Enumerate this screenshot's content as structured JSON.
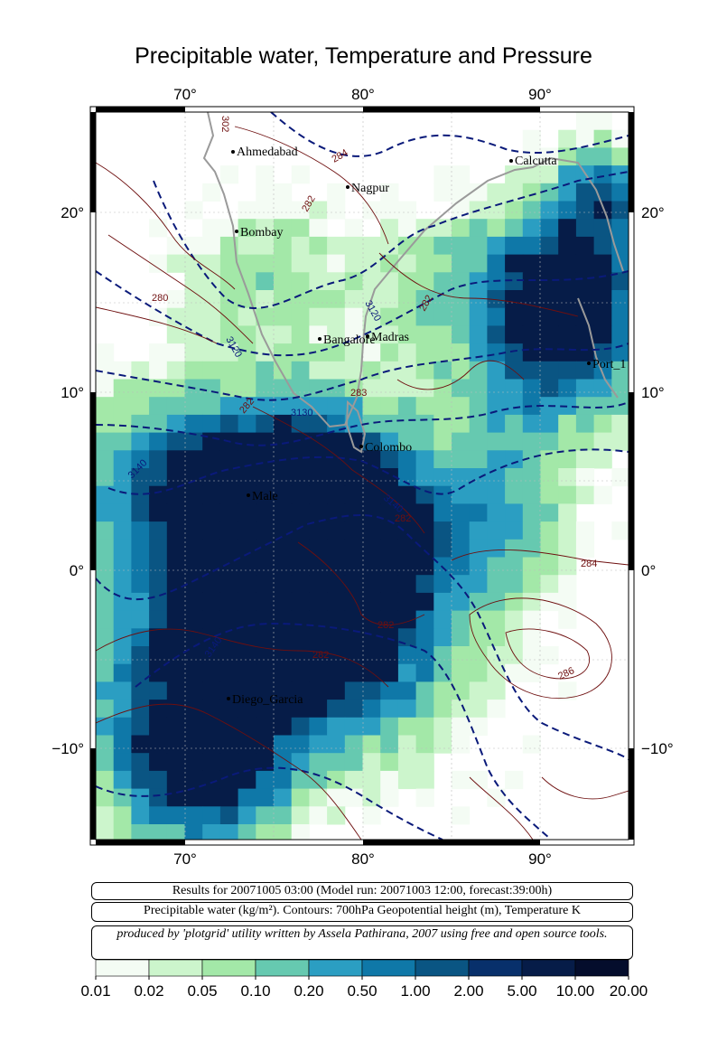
{
  "title": "Precipitable water, Temperature and Pressure",
  "axes": {
    "lon_ticks": [
      "70°",
      "80°",
      "90°"
    ],
    "lat_ticks": [
      "20°",
      "10°",
      "0°",
      "−10°"
    ]
  },
  "cities": [
    {
      "name": "Ahmedabad"
    },
    {
      "name": "Calcutta"
    },
    {
      "name": "Nagpur"
    },
    {
      "name": "Bombay"
    },
    {
      "name": "Bangalore"
    },
    {
      "name": "Madras"
    },
    {
      "name": "Port_1"
    },
    {
      "name": "Colombo"
    },
    {
      "name": "Male"
    },
    {
      "name": "Diego_Garcia"
    }
  ],
  "contour_labels": [
    "284",
    "282",
    "280",
    "3120",
    "3120",
    "282",
    "282",
    "3130",
    "283",
    "3140",
    "3140",
    "282",
    "284",
    "282",
    "282",
    "286",
    "3140",
    "302"
  ],
  "info": {
    "line1": "Results for 20071005 03:00 (Model run: 20071003 12:00, forecast:39:00h)",
    "line2": "Precipitable water (kg/m²).  Contours: 700hPa Geopotential height (m), Temperature K",
    "line3": "produced by 'plotgrid' utility written by Assela Pathirana, 2007 using free and open source tools."
  },
  "colorbar": {
    "labels": [
      "0.01",
      "0.02",
      "0.05",
      "0.10",
      "0.20",
      "0.50",
      "1.00",
      "2.00",
      "5.00",
      "10.00",
      "20.00"
    ],
    "colors": [
      "#f4fcf4",
      "#ccf5cc",
      "#a3e8a8",
      "#66c9b0",
      "#2b9ec2",
      "#0f78a8",
      "#0a5583",
      "#08306b",
      "#061c48",
      "#040d2c",
      "#020617"
    ]
  },
  "colors": {
    "contour_geopotential": "#0a1a7a",
    "contour_temperature": "#6e0f0f",
    "coastline": "#9a9a9a"
  }
}
